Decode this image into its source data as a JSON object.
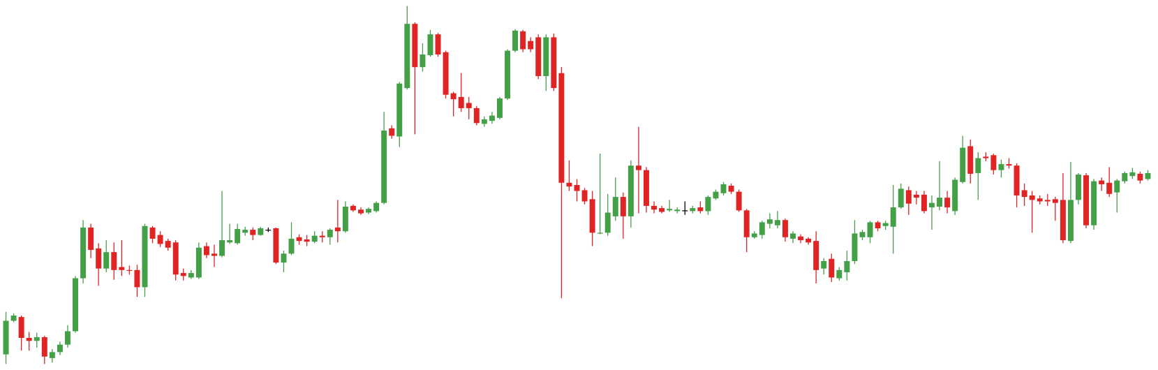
{
  "chart_data": {
    "type": "candlestick",
    "up_color": "#43a047",
    "down_color": "#e02424",
    "flat_color": "#000000",
    "ylim": [
      0,
      496
    ],
    "open": [
      21,
      66,
      71,
      43,
      39,
      44,
      16,
      24,
      34,
      52,
      123,
      191,
      163,
      136,
      158,
      138,
      134,
      134,
      111,
      191,
      181,
      173,
      171,
      130,
      124,
      124,
      166,
      156,
      153,
      171,
      170,
      184,
      188,
      181,
      188,
      190,
      144,
      156,
      178,
      175,
      172,
      180,
      178,
      191,
      186,
      220,
      215,
      211,
      213,
      224,
      324,
      313,
      378,
      464,
      406,
      422,
      450,
      426,
      371,
      366,
      358,
      351,
      330,
      334,
      338,
      364,
      428,
      454,
      441,
      446,
      394,
      446,
      398,
      251,
      248,
      241,
      229,
      183,
      184,
      206,
      232,
      206,
      274,
      268,
      220,
      217,
      214,
      213,
      214,
      213,
      218,
      213,
      230,
      237,
      247,
      239,
      214,
      178,
      181,
      196,
      194,
      201,
      176,
      179,
      176,
      173,
      136,
      149,
      123,
      131,
      146,
      178,
      178,
      198,
      193,
      192,
      218,
      241,
      235,
      235,
      218,
      219,
      231,
      213,
      252,
      300,
      264,
      286,
      288,
      268,
      276,
      274,
      241,
      234,
      230,
      228,
      229,
      228,
      173,
      228,
      261,
      194,
      254,
      251,
      238,
      253,
      260,
      263,
      256
    ],
    "high": [
      78,
      76,
      73,
      51,
      50,
      46,
      28,
      38,
      60,
      126,
      201,
      196,
      170,
      174,
      171,
      174,
      140,
      141,
      196,
      193,
      186,
      176,
      174,
      136,
      134,
      171,
      171,
      168,
      240,
      196,
      196,
      192,
      191,
      192,
      191,
      191,
      160,
      198,
      182,
      181,
      186,
      186,
      190,
      228,
      226,
      222,
      218,
      218,
      226,
      346,
      328,
      386,
      488,
      466,
      438,
      456,
      452,
      428,
      373,
      398,
      366,
      354,
      340,
      346,
      366,
      430,
      457,
      456,
      446,
      450,
      450,
      451,
      406,
      281,
      256,
      244,
      240,
      290,
      236,
      258,
      238,
      281,
      326,
      272,
      226,
      220,
      228,
      218,
      226,
      220,
      226,
      234,
      242,
      252,
      250,
      242,
      216,
      186,
      200,
      210,
      213,
      203,
      186,
      182,
      178,
      186,
      150,
      156,
      138,
      160,
      201,
      188,
      200,
      200,
      200,
      248,
      250,
      246,
      240,
      240,
      234,
      280,
      240,
      258,
      314,
      309,
      292,
      292,
      290,
      282,
      284,
      277,
      250,
      240,
      234,
      236,
      232,
      264,
      279,
      264,
      264,
      256,
      258,
      272,
      256,
      266,
      271,
      266,
      268
    ],
    "low": [
      8,
      64,
      26,
      26,
      30,
      8,
      10,
      20,
      30,
      50,
      116,
      150,
      113,
      131,
      121,
      126,
      128,
      98,
      98,
      170,
      165,
      160,
      120,
      120,
      122,
      122,
      150,
      138,
      151,
      169,
      168,
      180,
      174,
      180,
      185,
      142,
      131,
      154,
      168,
      166,
      170,
      171,
      168,
      171,
      184,
      212,
      208,
      209,
      211,
      222,
      310,
      299,
      376,
      316,
      400,
      420,
      420,
      364,
      340,
      346,
      336,
      328,
      326,
      330,
      336,
      362,
      426,
      426,
      426,
      390,
      374,
      374,
      96,
      240,
      226,
      222,
      166,
      182,
      180,
      200,
      176,
      191,
      210,
      211,
      210,
      210,
      212,
      210,
      208,
      210,
      210,
      208,
      228,
      234,
      236,
      212,
      158,
      176,
      176,
      190,
      190,
      172,
      170,
      170,
      168,
      116,
      128,
      118,
      120,
      120,
      142,
      174,
      170,
      186,
      188,
      156,
      216,
      208,
      222,
      210,
      188,
      214,
      210,
      208,
      250,
      250,
      228,
      280,
      262,
      258,
      270,
      218,
      220,
      184,
      222,
      220,
      200,
      170,
      170,
      222,
      190,
      188,
      240,
      232,
      211,
      250,
      256,
      250,
      254
    ],
    "close": [
      66,
      73,
      43,
      39,
      44,
      18,
      24,
      34,
      52,
      123,
      191,
      161,
      136,
      158,
      134,
      134,
      133,
      111,
      193,
      176,
      169,
      164,
      128,
      126,
      130,
      164,
      154,
      153,
      174,
      174,
      189,
      188,
      181,
      190,
      188,
      144,
      156,
      176,
      173,
      172,
      180,
      178,
      188,
      186,
      219,
      214,
      210,
      216,
      224,
      321,
      314,
      384,
      464,
      406,
      423,
      450,
      423,
      369,
      363,
      351,
      351,
      331,
      336,
      341,
      364,
      428,
      455,
      430,
      430,
      394,
      446,
      378,
      251,
      246,
      240,
      226,
      184,
      184,
      211,
      232,
      206,
      274,
      268,
      220,
      215,
      212,
      216,
      215,
      214,
      217,
      213,
      232,
      239,
      249,
      239,
      214,
      178,
      183,
      198,
      202,
      201,
      178,
      183,
      174,
      171,
      134,
      146,
      124,
      134,
      146,
      183,
      185,
      198,
      190,
      197,
      218,
      243,
      223,
      231,
      213,
      224,
      231,
      218,
      255,
      298,
      263,
      284,
      284,
      268,
      276,
      274,
      234,
      232,
      228,
      226,
      226,
      224,
      174,
      228,
      262,
      194,
      253,
      249,
      236,
      254,
      264,
      265,
      254,
      264
    ]
  }
}
